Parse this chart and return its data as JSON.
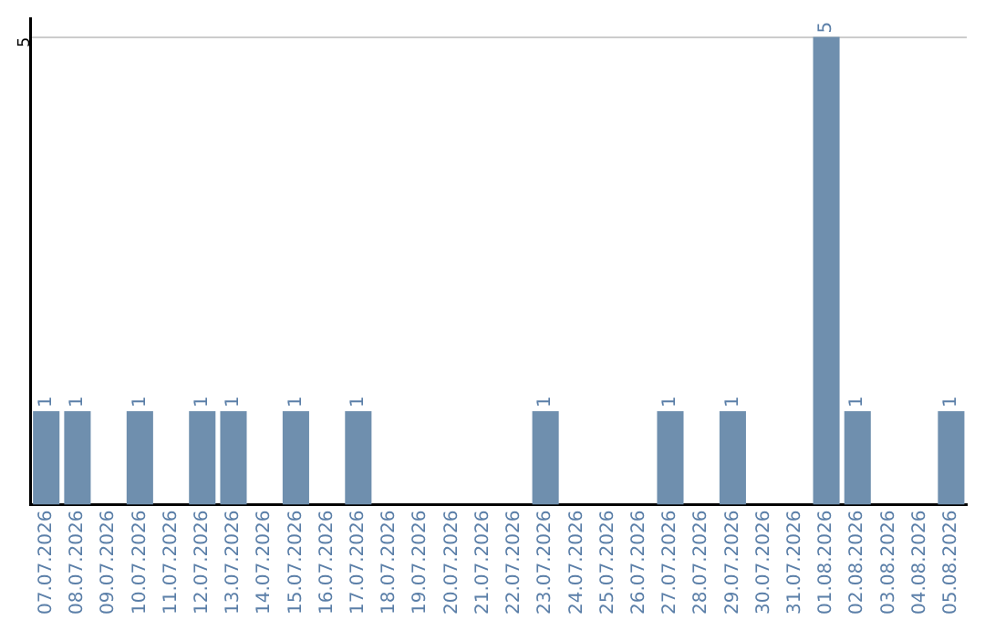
{
  "chart_data": {
    "type": "bar",
    "categories": [
      "07.07.2026",
      "08.07.2026",
      "09.07.2026",
      "10.07.2026",
      "11.07.2026",
      "12.07.2026",
      "13.07.2026",
      "14.07.2026",
      "15.07.2026",
      "16.07.2026",
      "17.07.2026",
      "18.07.2026",
      "19.07.2026",
      "20.07.2026",
      "21.07.2026",
      "22.07.2026",
      "23.07.2026",
      "24.07.2026",
      "25.07.2026",
      "26.07.2026",
      "27.07.2026",
      "28.07.2026",
      "29.07.2026",
      "30.07.2026",
      "31.07.2026",
      "01.08.2026",
      "02.08.2026",
      "03.08.2026",
      "04.08.2026",
      "05.08.2026"
    ],
    "values": [
      1,
      1,
      0,
      1,
      0,
      1,
      1,
      0,
      1,
      0,
      1,
      0,
      0,
      0,
      0,
      0,
      1,
      0,
      0,
      0,
      1,
      0,
      1,
      0,
      0,
      5,
      1,
      0,
      0,
      1
    ],
    "value_labels": [
      "1",
      "1",
      null,
      "1",
      null,
      "1",
      "1",
      null,
      "1",
      null,
      "1",
      null,
      null,
      null,
      null,
      null,
      "1",
      null,
      null,
      null,
      "1",
      null,
      "1",
      null,
      null,
      "5",
      "1",
      null,
      null,
      "1"
    ],
    "color": "#6f8fae",
    "ylim": [
      0,
      5.2
    ],
    "yticks": [
      5
    ],
    "grid": "y",
    "legend": false
  }
}
